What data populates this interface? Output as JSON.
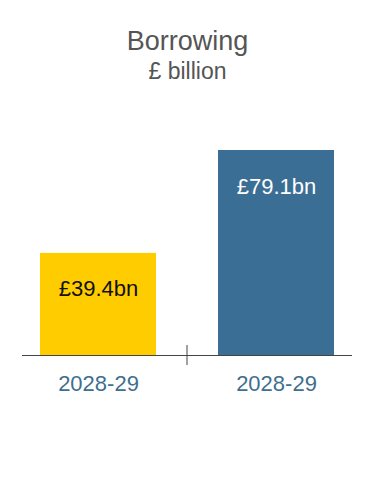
{
  "chart_data": {
    "type": "bar",
    "title": "Borrowing",
    "subtitle": "£ billion",
    "categories": [
      "2028-29",
      "2028-29"
    ],
    "values": [
      39.4,
      79.1
    ],
    "value_labels": [
      "£39.4bn",
      "£79.1bn"
    ],
    "colors": [
      "#ffcc00",
      "#3b6e94"
    ],
    "data_labels": true,
    "tick_labels": "x",
    "grid": false
  }
}
